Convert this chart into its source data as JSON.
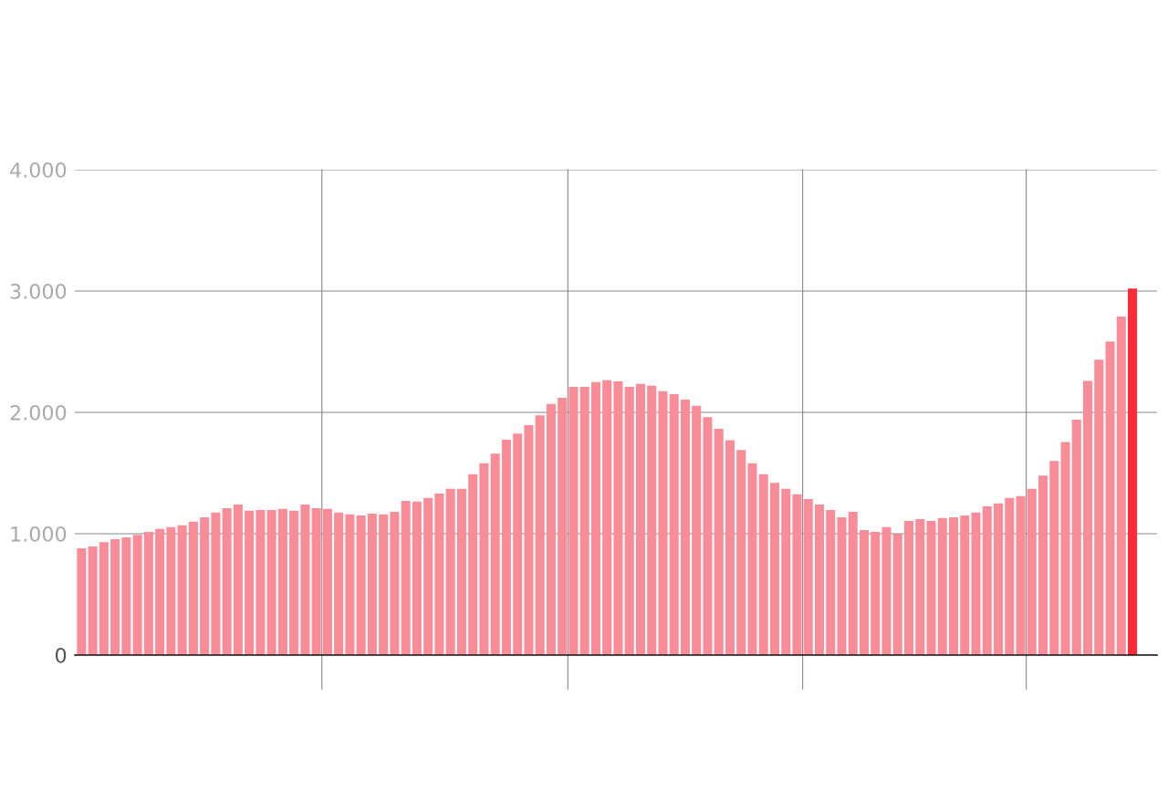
{
  "chart_data": {
    "type": "bar",
    "categories": [
      null,
      null,
      null,
      null,
      null,
      null,
      null,
      null,
      null,
      null,
      null,
      null,
      null,
      null,
      null,
      null,
      null,
      null,
      null,
      null,
      null,
      null,
      null,
      null,
      null,
      null,
      null,
      null,
      null,
      null,
      null,
      null,
      null,
      null,
      null,
      null,
      null,
      null,
      null,
      null,
      null,
      null,
      null,
      null,
      null,
      null,
      null,
      null,
      null,
      null,
      null,
      null,
      null,
      null,
      null,
      null,
      null,
      null,
      null,
      null,
      null,
      null,
      null,
      null,
      null,
      null,
      null,
      null,
      null,
      null,
      null,
      null,
      null,
      null,
      null,
      null,
      null,
      null,
      null,
      null,
      null,
      null,
      null,
      null,
      null,
      null,
      null,
      null,
      null,
      null,
      null,
      null,
      null,
      null,
      null
    ],
    "values": [
      880,
      895,
      930,
      955,
      970,
      990,
      1015,
      1040,
      1055,
      1070,
      1100,
      1135,
      1175,
      1210,
      1240,
      1190,
      1195,
      1195,
      1205,
      1190,
      1240,
      1210,
      1205,
      1175,
      1160,
      1150,
      1165,
      1160,
      1180,
      1270,
      1265,
      1295,
      1330,
      1370,
      1370,
      1490,
      1580,
      1660,
      1775,
      1825,
      1895,
      1975,
      2070,
      2120,
      2210,
      2210,
      2250,
      2265,
      2255,
      2210,
      2235,
      2220,
      2175,
      2150,
      2105,
      2055,
      1960,
      1865,
      1770,
      1690,
      1580,
      1490,
      1420,
      1370,
      1325,
      1285,
      1240,
      1195,
      1135,
      1180,
      1030,
      1015,
      1055,
      1000,
      1105,
      1120,
      1105,
      1130,
      1135,
      1150,
      1175,
      1225,
      1250,
      1295,
      1310,
      1370,
      1480,
      1600,
      1755,
      1940,
      2260,
      2435,
      2585,
      2790,
      3020
    ],
    "colors": [
      "#f98c99",
      "#f98c99",
      "#f98c99",
      "#f98c99",
      "#f98c99",
      "#f98c99",
      "#f98c99",
      "#f98c99",
      "#f98c99",
      "#f98c99",
      "#f98c99",
      "#f98c99",
      "#f98c99",
      "#f98c99",
      "#f98c99",
      "#f98c99",
      "#f98c99",
      "#f98c99",
      "#f98c99",
      "#f98c99",
      "#f98c99",
      "#f98c99",
      "#f98c99",
      "#f98c99",
      "#f98c99",
      "#f98c99",
      "#f98c99",
      "#f98c99",
      "#f98c99",
      "#f98c99",
      "#f98c99",
      "#f98c99",
      "#f98c99",
      "#f98c99",
      "#f98c99",
      "#f98c99",
      "#f98c99",
      "#f98c99",
      "#f98c99",
      "#f98c99",
      "#f98c99",
      "#f98c99",
      "#f98c99",
      "#f98c99",
      "#f98c99",
      "#f98c99",
      "#f98c99",
      "#f98c99",
      "#f98c99",
      "#f98c99",
      "#f98c99",
      "#f98c99",
      "#f98c99",
      "#f98c99",
      "#f98c99",
      "#f98c99",
      "#f98c99",
      "#f98c99",
      "#f98c99",
      "#f98c99",
      "#f98c99",
      "#f98c99",
      "#f98c99",
      "#f98c99",
      "#f98c99",
      "#f98c99",
      "#f98c99",
      "#f98c99",
      "#f98c99",
      "#f98c99",
      "#f98c99",
      "#f98c99",
      "#f98c99",
      "#f98c99",
      "#f98c99",
      "#f98c99",
      "#f98c99",
      "#f98c99",
      "#f98c99",
      "#f98c99",
      "#f98c99",
      "#f98c99",
      "#f98c99",
      "#f98c99",
      "#f98c99",
      "#f98c99",
      "#f98c99",
      "#f98c99",
      "#f98c99",
      "#f98c99",
      "#f98c99",
      "#f98c99",
      "#f98c99",
      "#f98c99",
      "#fc2b3a"
    ],
    "ylim": [
      0,
      4000
    ],
    "yticks": [
      0,
      {
        "value": 1000,
        "label": "1.000"
      },
      {
        "value": 2000,
        "label": "2.000"
      },
      {
        "value": 3000,
        "label": "3.000"
      },
      {
        "value": 4000,
        "label": "4.000"
      }
    ],
    "tick_labels": "y",
    "grid": "y"
  }
}
